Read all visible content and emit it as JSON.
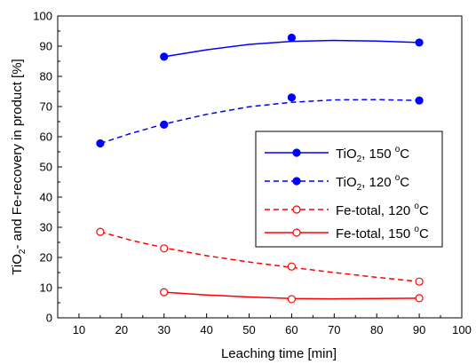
{
  "chart_data": {
    "type": "scatter",
    "xlabel": "Leaching time [min]",
    "ylabel_parts": [
      "TiO",
      "2",
      "- and Fe-recovery in product [%]"
    ],
    "xlim": [
      5,
      100
    ],
    "ylim": [
      0,
      100
    ],
    "xticks": [
      10,
      20,
      30,
      40,
      50,
      60,
      70,
      80,
      90,
      100
    ],
    "yticks": [
      0,
      10,
      20,
      30,
      40,
      50,
      60,
      70,
      80,
      90,
      100
    ],
    "grid": false,
    "legend_position": "center-right",
    "series": [
      {
        "name": "TiO2, 150 °C",
        "label_parts": [
          "TiO",
          "2",
          ", 150 ",
          "o",
          "C"
        ],
        "color": "#0000ff",
        "line": "solid",
        "marker": "filled-circle",
        "points": [
          [
            30,
            86.5
          ],
          [
            60,
            92.8
          ],
          [
            90,
            91.2
          ]
        ],
        "curve": [
          [
            30,
            86.5
          ],
          [
            40,
            88.8
          ],
          [
            50,
            90.6
          ],
          [
            60,
            91.6
          ],
          [
            70,
            91.9
          ],
          [
            80,
            91.7
          ],
          [
            90,
            91.2
          ]
        ]
      },
      {
        "name": "TiO2, 120 °C",
        "label_parts": [
          "TiO",
          "2",
          ", 120 ",
          "o",
          "C"
        ],
        "color": "#0000ff",
        "line": "dashed",
        "marker": "filled-circle",
        "points": [
          [
            15,
            57.8
          ],
          [
            30,
            64.0
          ],
          [
            60,
            73.0
          ],
          [
            90,
            72.0
          ]
        ],
        "curve": [
          [
            15,
            57.8
          ],
          [
            22,
            61.0
          ],
          [
            30,
            64.2
          ],
          [
            40,
            67.4
          ],
          [
            50,
            69.9
          ],
          [
            60,
            71.4
          ],
          [
            70,
            72.2
          ],
          [
            80,
            72.3
          ],
          [
            90,
            72.0
          ]
        ]
      },
      {
        "name": "Fe-total, 120 °C",
        "label_parts": [
          "Fe-total, 120 ",
          "o",
          "C"
        ],
        "color": "#ff0000",
        "line": "dashed",
        "marker": "open-circle",
        "points": [
          [
            15,
            28.5
          ],
          [
            30,
            23.0
          ],
          [
            60,
            17.0
          ],
          [
            90,
            12.0
          ]
        ],
        "curve": [
          [
            15,
            28.5
          ],
          [
            22,
            25.8
          ],
          [
            30,
            23.2
          ],
          [
            40,
            20.6
          ],
          [
            50,
            18.5
          ],
          [
            60,
            16.7
          ],
          [
            70,
            15.0
          ],
          [
            80,
            13.4
          ],
          [
            90,
            12.0
          ]
        ]
      },
      {
        "name": "Fe-total, 150 °C",
        "label_parts": [
          "Fe-total, 150 ",
          "o",
          "C"
        ],
        "color": "#ff0000",
        "line": "solid",
        "marker": "open-circle",
        "points": [
          [
            30,
            8.5
          ],
          [
            60,
            6.2
          ],
          [
            90,
            6.5
          ]
        ],
        "curve": [
          [
            30,
            8.5
          ],
          [
            40,
            7.6
          ],
          [
            50,
            6.9
          ],
          [
            60,
            6.4
          ],
          [
            70,
            6.3
          ],
          [
            80,
            6.4
          ],
          [
            90,
            6.5
          ]
        ]
      }
    ]
  }
}
